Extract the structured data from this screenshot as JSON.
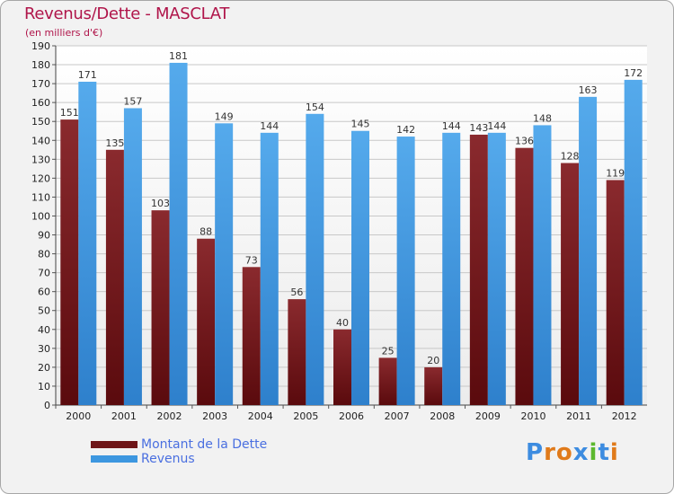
{
  "header": {
    "title": "Revenus/Dette - MASCLAT",
    "subtitle": "(en milliers d'€)"
  },
  "legend": {
    "items": [
      {
        "label": "Montant de la Dette",
        "color": "#6e1518"
      },
      {
        "label": "Revenus",
        "color": "#3d97e0"
      }
    ]
  },
  "logo": {
    "text": "Proxiti",
    "letter_colors": [
      "#3d8ce0",
      "#e07a1a",
      "#e07a1a",
      "#3d8ce0",
      "#5cb82e",
      "#3d8ce0",
      "#e07a1a"
    ]
  },
  "chart_data": {
    "type": "bar",
    "categories": [
      "2000",
      "2001",
      "2002",
      "2003",
      "2004",
      "2005",
      "2006",
      "2007",
      "2008",
      "2009",
      "2010",
      "2011",
      "2012"
    ],
    "series": [
      {
        "name": "Montant de la Dette",
        "color": "#6e1518",
        "values": [
          151,
          135,
          103,
          88,
          73,
          56,
          40,
          25,
          20,
          143,
          136,
          128,
          119
        ]
      },
      {
        "name": "Revenus",
        "color": "#3d97e0",
        "values": [
          171,
          157,
          181,
          149,
          144,
          154,
          145,
          142,
          144,
          144,
          148,
          163,
          172
        ]
      }
    ],
    "title": "Revenus/Dette - MASCLAT",
    "ylabel": "(en milliers d'€)",
    "ylim": [
      0,
      190
    ],
    "ytick_step": 10,
    "grid": true,
    "legend_position": "bottom-left"
  }
}
